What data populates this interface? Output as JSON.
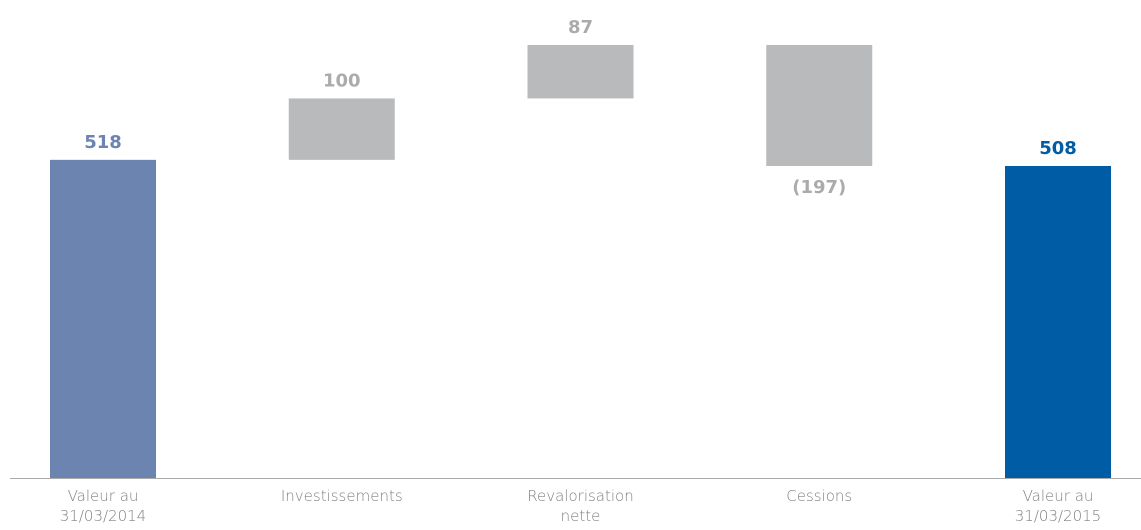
{
  "chart_data": {
    "type": "waterfall",
    "categories": [
      "Valeur au\n31/03/2014",
      "Investissements",
      "Revalorisation\nnette",
      "Cessions",
      "Valeur au\n31/03/2015"
    ],
    "values": [
      518,
      100,
      87,
      -197,
      508
    ],
    "value_labels": [
      "518",
      "100",
      "87",
      "(197)",
      "508"
    ],
    "totals": [
      true,
      false,
      false,
      false,
      true
    ],
    "colors": [
      "#6b84b0",
      "#b9babc",
      "#b9babc",
      "#b9babc",
      "#005ca5"
    ]
  }
}
